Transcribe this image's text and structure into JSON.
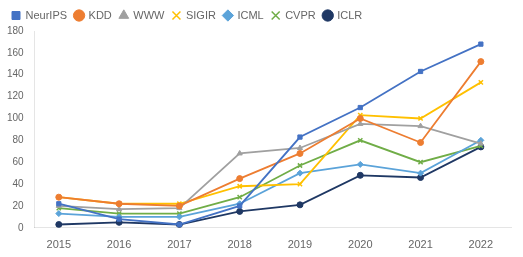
{
  "chart_data": {
    "type": "line",
    "x": [
      2015,
      2016,
      2017,
      2018,
      2019,
      2020,
      2021,
      2022
    ],
    "series": [
      {
        "name": "NeurIPS",
        "color": "#4472C4",
        "marker": "square",
        "values": [
          22,
          8,
          3,
          20,
          83,
          110,
          143,
          168
        ]
      },
      {
        "name": "KDD",
        "color": "#ED7D31",
        "marker": "circle",
        "values": [
          28,
          22,
          20,
          45,
          68,
          100,
          78,
          152
        ]
      },
      {
        "name": "WWW",
        "color": "#A0A0A0",
        "marker": "triangle",
        "values": [
          20,
          17,
          18,
          68,
          73,
          95,
          93,
          77
        ]
      },
      {
        "name": "SIGIR",
        "color": "#FFC000",
        "marker": "x",
        "values": [
          28,
          22,
          22,
          38,
          40,
          103,
          100,
          133
        ]
      },
      {
        "name": "ICML",
        "color": "#5BA3D9",
        "marker": "diamond",
        "values": [
          13,
          10,
          10,
          22,
          50,
          58,
          50,
          80
        ]
      },
      {
        "name": "CVPR",
        "color": "#70AD47",
        "marker": "x",
        "values": [
          18,
          13,
          13,
          28,
          57,
          80,
          60,
          75
        ]
      },
      {
        "name": "ICLR",
        "color": "#1F3864",
        "marker": "circle",
        "values": [
          3,
          5,
          3,
          15,
          21,
          48,
          46,
          74
        ]
      }
    ],
    "xlim": [
      2014.6,
      2022.5
    ],
    "xticks": [
      2015,
      2016,
      2017,
      2018,
      2019,
      2020,
      2021,
      2022
    ],
    "ylim": [
      0,
      180
    ],
    "yticks": [
      0,
      20,
      40,
      60,
      80,
      100,
      120,
      140,
      160,
      180
    ],
    "grid": false,
    "legend": "upper left"
  }
}
